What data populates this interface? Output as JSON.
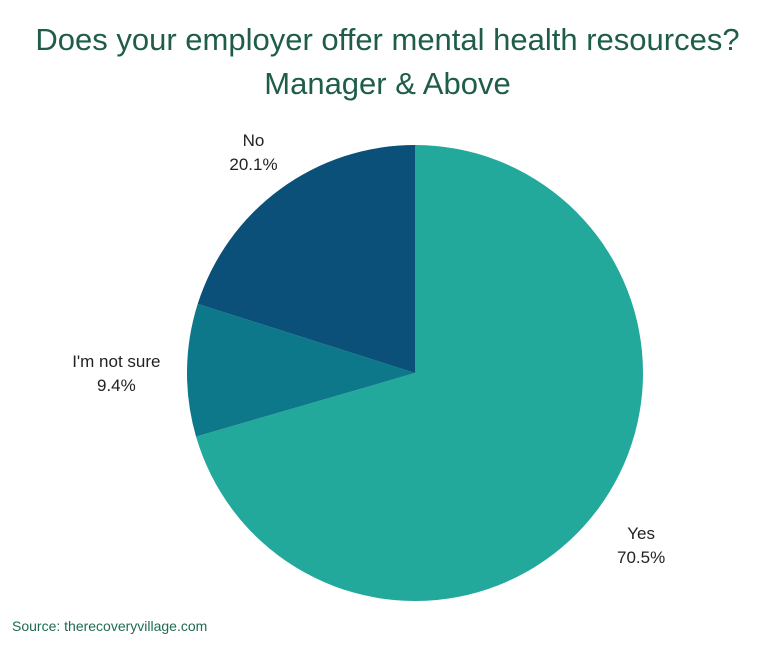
{
  "chart": {
    "title_line1": "Does your employer offer mental health resources?",
    "title_line2": "Manager & Above"
  },
  "chart_data": {
    "type": "pie",
    "title": "Does your employer offer mental health resources? Manager & Above",
    "slices": [
      {
        "label": "Yes",
        "value": 70.5,
        "value_label": "70.5%",
        "color": "#23a89c"
      },
      {
        "label": "I'm not sure",
        "value": 9.4,
        "value_label": "9.4%",
        "color": "#0d7889"
      },
      {
        "label": "No",
        "value": 20.1,
        "value_label": "20.1%",
        "color": "#0b5078"
      }
    ],
    "start": "12 o'clock",
    "direction": "clockwise"
  },
  "footer": {
    "source": "Source: therecoveryvillage.com"
  }
}
